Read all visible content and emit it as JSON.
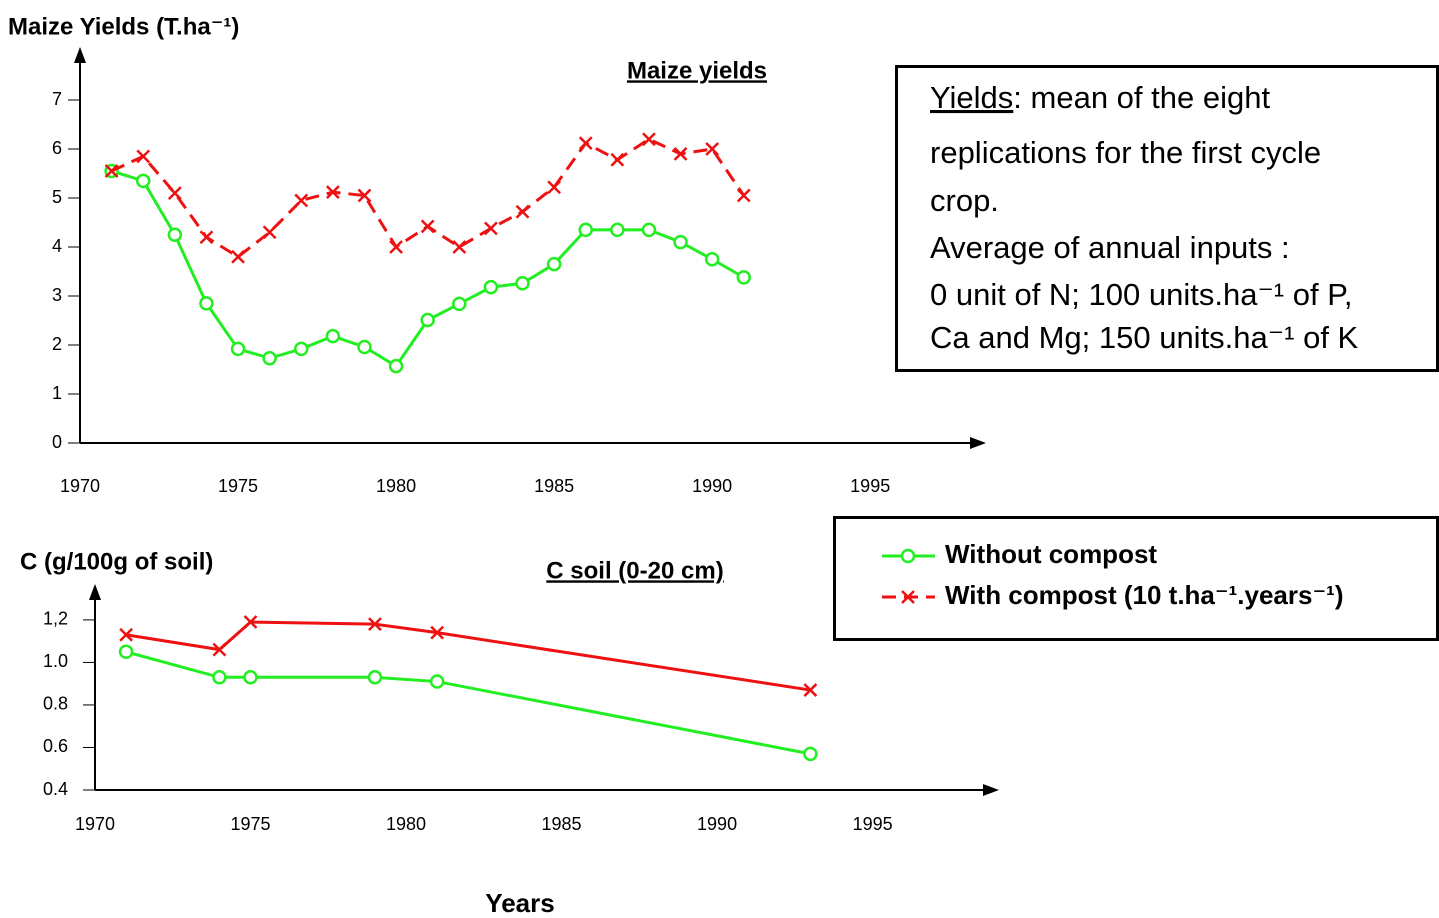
{
  "chart_data": [
    {
      "type": "line",
      "title": "Maize yields",
      "ylabel": "Maize Yields (T.ha⁻¹)",
      "x": [
        1971,
        1972,
        1973,
        1974,
        1975,
        1976,
        1977,
        1978,
        1979,
        1980,
        1981,
        1982,
        1983,
        1984,
        1985,
        1986,
        1987,
        1988,
        1989,
        1990,
        1991
      ],
      "series": [
        {
          "name": "Without compost",
          "color": "#22ee22",
          "marker": "circle",
          "line_style": "solid",
          "values": [
            5.55,
            5.35,
            4.25,
            2.85,
            1.92,
            1.73,
            1.92,
            2.18,
            1.96,
            1.57,
            2.51,
            2.84,
            3.18,
            3.26,
            3.65,
            4.35,
            4.35,
            4.35,
            4.1,
            3.75,
            3.38
          ]
        },
        {
          "name": "With compost (10 t.ha⁻¹.years⁻¹)",
          "color": "#ee1111",
          "marker": "x",
          "line_style": "dashed",
          "values": [
            5.55,
            5.85,
            5.1,
            4.2,
            3.8,
            4.3,
            4.95,
            5.12,
            5.05,
            4.0,
            4.42,
            4.0,
            4.38,
            4.72,
            5.22,
            6.12,
            5.78,
            6.2,
            5.9,
            6.0,
            5.05
          ]
        }
      ],
      "xlim": [
        1970,
        1998.6
      ],
      "xticks": [
        1970,
        1975,
        1980,
        1985,
        1990,
        1995
      ],
      "ylim": [
        0,
        8
      ],
      "yticks": [
        0,
        1,
        2,
        3,
        4,
        5,
        6,
        7
      ],
      "annotation": [
        "Yields",
        ": mean of the eight",
        "replications for the first cycle",
        "crop.",
        "Average of annual inputs :",
        "0 unit of N; 100 units.ha⁻¹ of P,",
        "Ca and Mg; 150 units.ha⁻¹ of K"
      ]
    },
    {
      "type": "line",
      "title": "C soil (0-20 cm)",
      "ylabel": "C (g/100g of soil)",
      "xlabel": "Years",
      "x": [
        1971,
        1974,
        1975,
        1979,
        1981,
        1993
      ],
      "series": [
        {
          "color": "#22ee22",
          "marker": "circle",
          "line_style": "solid",
          "values": [
            1.05,
            0.93,
            0.93,
            0.93,
            0.91,
            0.57
          ]
        },
        {
          "color": "#ee1111",
          "marker": "x",
          "line_style": "solid",
          "values": [
            1.13,
            1.06,
            1.19,
            1.18,
            1.14,
            0.87
          ]
        }
      ],
      "xlim": [
        1970,
        1999
      ],
      "xticks": [
        1970,
        1975,
        1980,
        1985,
        1990,
        1995
      ],
      "ylim": [
        0.4,
        1.35
      ],
      "yticks": [
        {
          "value": 1.2,
          "label": "1,2"
        },
        {
          "value": 1,
          "label": "1.0"
        },
        0.8,
        0.6,
        0.4
      ]
    }
  ]
}
